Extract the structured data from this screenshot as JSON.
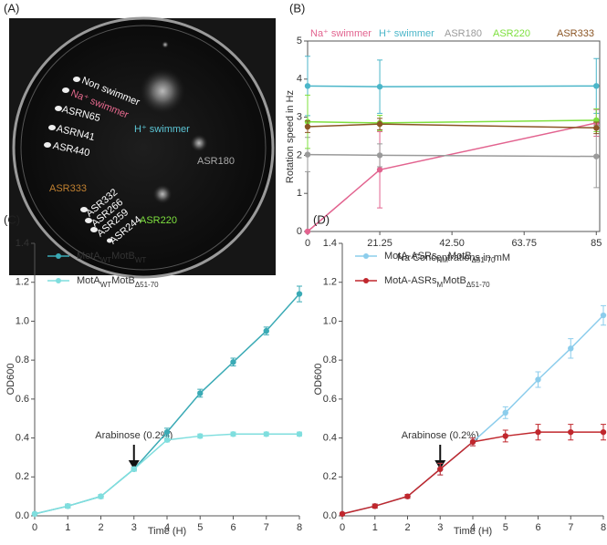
{
  "photo": {
    "panel_label": "(A)",
    "labels": [
      "Non swimmer",
      "Na⁺ swimmer",
      "ASRN65",
      "ASRN41",
      "ASR440",
      "H⁺ swimmer",
      "ASR180",
      "ASR333",
      "ASR332",
      "ASR266",
      "ASR259",
      "ASR244",
      "ASR220"
    ]
  },
  "chart_data": [
    {
      "type": "line",
      "panel_label": "(B)",
      "y_label": "Rotation speed in Hz",
      "x_label": "Na Concentrations in mM",
      "x": [
        0,
        21.25,
        85
      ],
      "xlim": [
        0,
        86
      ],
      "xticks": [
        0,
        21.25,
        {
          "value": 42.5,
          "label": "42.50"
        },
        63.75,
        85
      ],
      "ylim": [
        0,
        5
      ],
      "yticks": [
        0,
        1,
        2,
        3,
        4,
        5
      ],
      "legend": "top",
      "frame": true,
      "series": [
        {
          "name": "Na⁺ swimmer",
          "color": "#e2638f",
          "values": [
            0,
            1.62,
            2.85
          ],
          "errors": [
            0,
            1.0,
            0.35
          ]
        },
        {
          "name": "H⁺ swimmer",
          "color": "#4bb6c9",
          "values": [
            3.82,
            3.8,
            3.82
          ],
          "errors": [
            0.78,
            0.7,
            0.72
          ]
        },
        {
          "name": "ASR180",
          "color": "#9a9a9a",
          "values": [
            2.02,
            2.0,
            1.97
          ],
          "errors": [
            0.45,
            0.3,
            0.82
          ]
        },
        {
          "name": "ASR220",
          "color": "#7ee03e",
          "values": [
            2.88,
            2.85,
            2.92
          ],
          "errors": [
            0.7,
            0.2,
            0.3
          ]
        },
        {
          "name": "ASR333",
          "color": "#8b5524",
          "values": [
            2.75,
            2.82,
            2.72
          ],
          "errors": [
            0.15,
            0.15,
            0.15
          ]
        }
      ]
    },
    {
      "type": "line",
      "panel_label": "(C)",
      "y_label": "OD600",
      "x_label": "Time (H)",
      "x": [
        0,
        1,
        2,
        3,
        4,
        5,
        6,
        7,
        8
      ],
      "xlim": [
        0,
        8
      ],
      "xticks": [
        0,
        1,
        2,
        3,
        4,
        5,
        6,
        7,
        8
      ],
      "ylim": [
        0,
        1.4
      ],
      "yticks": [
        {
          "value": 0,
          "label": "0.0"
        },
        0.2,
        0.4,
        0.6,
        0.8,
        {
          "value": 1,
          "label": "1.0"
        },
        1.2,
        1.4
      ],
      "legend": "upper left",
      "annotation": {
        "text": "Arabinose (0.2%)",
        "x": 3
      },
      "series": [
        {
          "name": "MotA_{WT}MotB_{WT}",
          "color": "#3aaab5",
          "values": [
            0.01,
            0.05,
            0.1,
            0.24,
            0.43,
            0.63,
            0.79,
            0.95,
            1.14
          ],
          "errors": [
            0.005,
            0.01,
            0.01,
            0.01,
            0.02,
            0.02,
            0.02,
            0.02,
            0.04
          ]
        },
        {
          "name": "MotA_{WT}MotB_{Δ51-70}",
          "color": "#7fdede",
          "values": [
            0.01,
            0.05,
            0.1,
            0.24,
            0.39,
            0.41,
            0.42,
            0.42,
            0.42
          ],
          "errors": [
            0.005,
            0.01,
            0.01,
            0.01,
            0.01,
            0.01,
            0.01,
            0.01,
            0.01
          ]
        }
      ]
    },
    {
      "type": "line",
      "panel_label": "(D)",
      "y_label": "OD600",
      "x_label": "Time (H)",
      "x": [
        0,
        1,
        2,
        3,
        4,
        5,
        6,
        7,
        8
      ],
      "xlim": [
        0,
        8
      ],
      "xticks": [
        0,
        1,
        2,
        3,
        4,
        5,
        6,
        7,
        8
      ],
      "ylim": [
        0,
        1.4
      ],
      "yticks": [
        {
          "value": 0,
          "label": "0.0"
        },
        0.2,
        0.4,
        0.6,
        0.8,
        {
          "value": 1,
          "label": "1.0"
        },
        1.2,
        1.4
      ],
      "legend": "upper left",
      "annotation": {
        "text": "Arabinose (0.2%)",
        "x": 3
      },
      "series": [
        {
          "name": "MotA-ASRs_{NM}MotB_{Δ51-70}",
          "color": "#8ccdec",
          "values": [
            0.01,
            0.05,
            0.1,
            0.24,
            0.38,
            0.53,
            0.7,
            0.86,
            1.03
          ],
          "errors": [
            0.005,
            0.01,
            0.01,
            0.03,
            0.02,
            0.03,
            0.04,
            0.05,
            0.05
          ]
        },
        {
          "name": "MotA-ASRs_{M}MotB_{Δ51-70}",
          "color": "#c0272d",
          "values": [
            0.01,
            0.05,
            0.1,
            0.24,
            0.38,
            0.41,
            0.43,
            0.43,
            0.43
          ],
          "errors": [
            0.005,
            0.01,
            0.01,
            0.03,
            0.02,
            0.03,
            0.04,
            0.04,
            0.04
          ]
        }
      ]
    }
  ]
}
